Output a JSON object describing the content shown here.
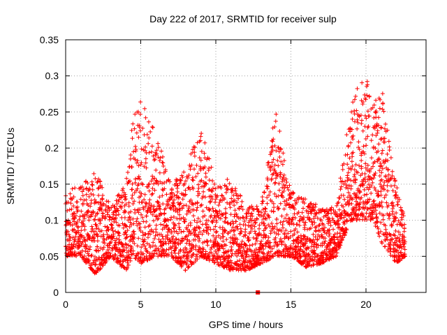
{
  "chart_data": {
    "type": "scatter",
    "title": "Day 222 of 2017, SRMTID for receiver sulp",
    "xlabel": "GPS time / hours",
    "ylabel": "SRMTID / TECUs",
    "xlim": [
      0,
      24
    ],
    "ylim": [
      0,
      0.35
    ],
    "x_ticks": [
      0,
      5,
      10,
      15,
      20
    ],
    "x_tick_labels": [
      "0",
      "5",
      "10",
      "15",
      "20"
    ],
    "y_ticks": [
      0,
      0.05,
      0.1,
      0.15,
      0.2,
      0.25,
      0.3,
      0.35
    ],
    "y_tick_labels": [
      "0",
      "0.05",
      "0.1",
      "0.15",
      "0.2",
      "0.25",
      "0.3",
      "0.35"
    ],
    "grid": true,
    "marker": "plus",
    "marker_color": "#ff0000",
    "series": [
      {
        "name": "SRMTID",
        "sampling_interval_hours": 0.02,
        "start_hour": 0.0,
        "end_hour": 22.6,
        "envelope": [
          {
            "x": 0.0,
            "low": 0.05,
            "high": 0.14
          },
          {
            "x": 1.0,
            "low": 0.05,
            "high": 0.15
          },
          {
            "x": 2.0,
            "low": 0.025,
            "high": 0.17
          },
          {
            "x": 3.0,
            "low": 0.05,
            "high": 0.12
          },
          {
            "x": 4.0,
            "low": 0.03,
            "high": 0.15
          },
          {
            "x": 4.5,
            "low": 0.05,
            "high": 0.245
          },
          {
            "x": 5.0,
            "low": 0.04,
            "high": 0.265
          },
          {
            "x": 6.0,
            "low": 0.05,
            "high": 0.23
          },
          {
            "x": 7.0,
            "low": 0.05,
            "high": 0.15
          },
          {
            "x": 8.0,
            "low": 0.03,
            "high": 0.17
          },
          {
            "x": 9.0,
            "low": 0.05,
            "high": 0.235
          },
          {
            "x": 10.0,
            "low": 0.04,
            "high": 0.15
          },
          {
            "x": 11.0,
            "low": 0.03,
            "high": 0.16
          },
          {
            "x": 12.0,
            "low": 0.03,
            "high": 0.12
          },
          {
            "x": 13.0,
            "low": 0.04,
            "high": 0.12
          },
          {
            "x": 14.0,
            "low": 0.05,
            "high": 0.255
          },
          {
            "x": 15.0,
            "low": 0.05,
            "high": 0.14
          },
          {
            "x": 16.0,
            "low": 0.035,
            "high": 0.13
          },
          {
            "x": 17.0,
            "low": 0.04,
            "high": 0.12
          },
          {
            "x": 18.0,
            "low": 0.05,
            "high": 0.12
          },
          {
            "x": 19.0,
            "low": 0.1,
            "high": 0.26
          },
          {
            "x": 19.8,
            "low": 0.1,
            "high": 0.305
          },
          {
            "x": 20.5,
            "low": 0.1,
            "high": 0.28
          },
          {
            "x": 21.0,
            "low": 0.07,
            "high": 0.29
          },
          {
            "x": 22.0,
            "low": 0.04,
            "high": 0.15
          },
          {
            "x": 22.6,
            "low": 0.05,
            "high": 0.1
          }
        ]
      }
    ],
    "outliers": [
      {
        "x": 12.8,
        "y": 0.0
      }
    ]
  }
}
